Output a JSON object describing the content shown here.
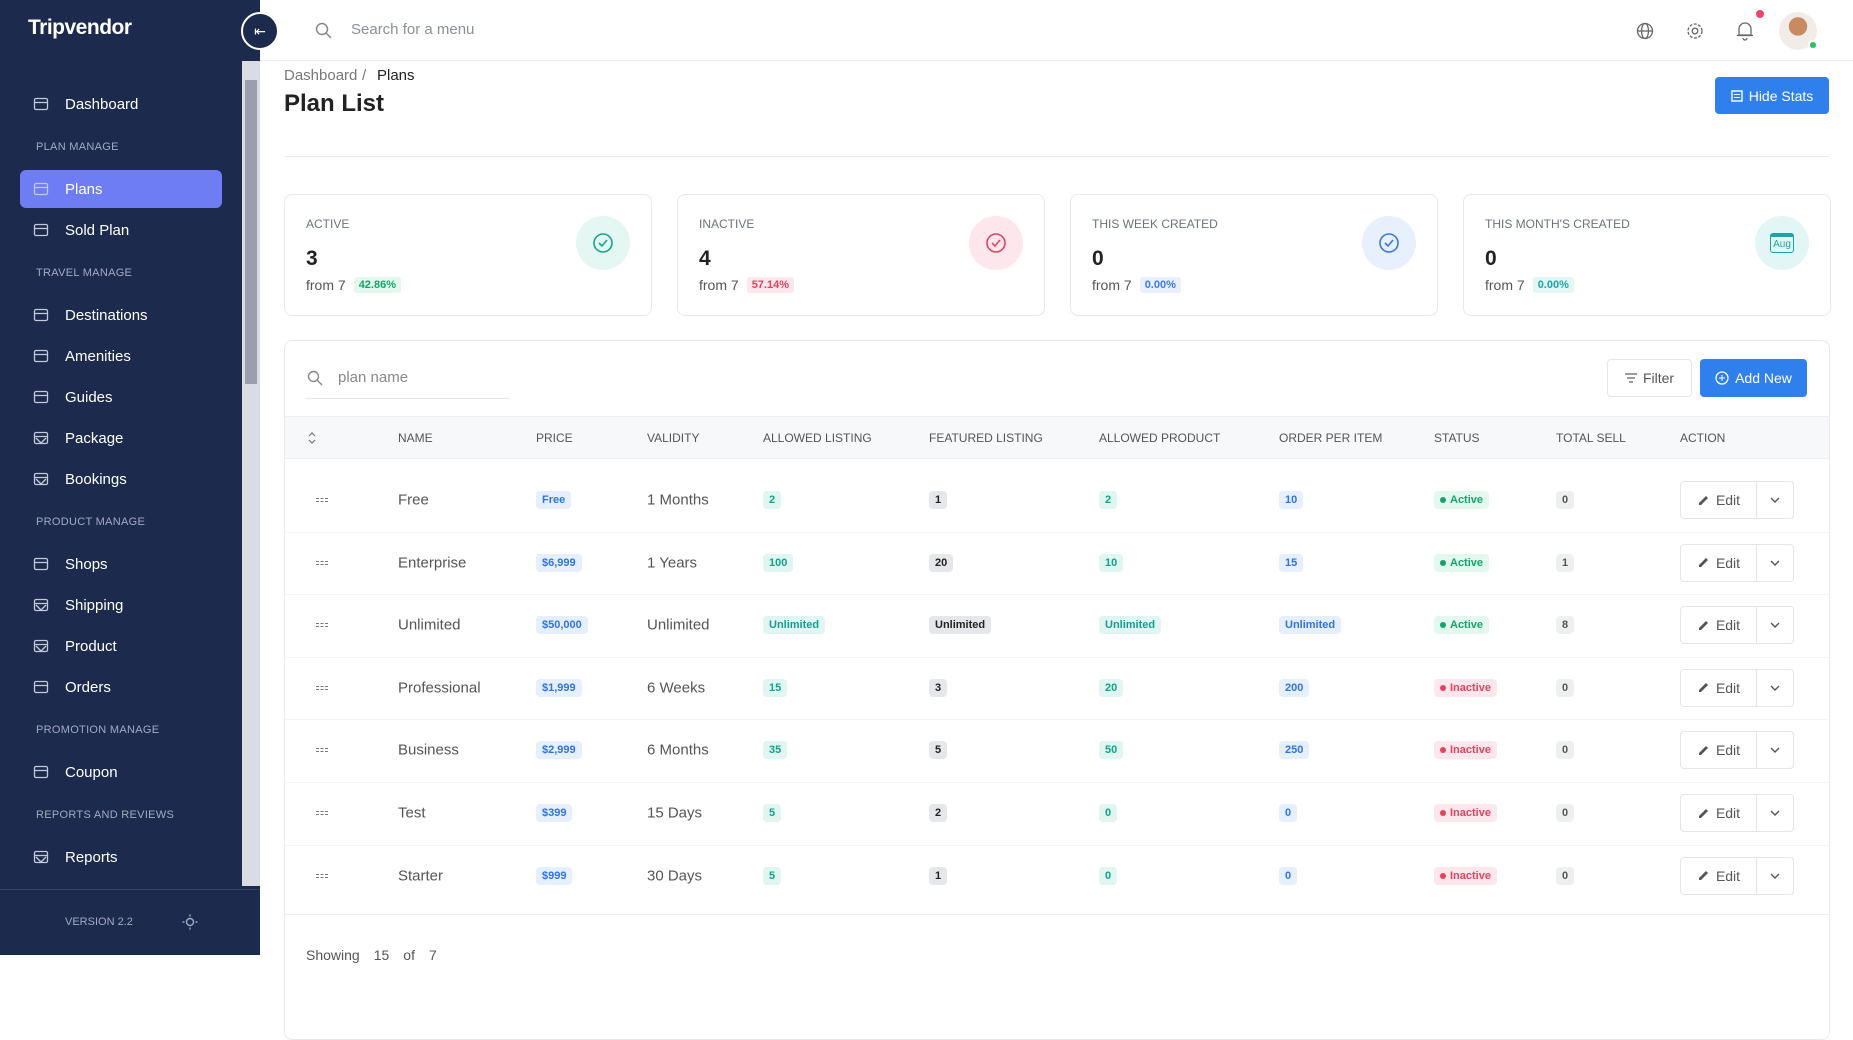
{
  "brand": "Tripvendor",
  "sidebar": {
    "top": {
      "label": "Dashboard"
    },
    "sections": [
      {
        "title": "PLAN MANAGE",
        "items": [
          {
            "label": "Plans",
            "active": true
          },
          {
            "label": "Sold Plan"
          }
        ]
      },
      {
        "title": "TRAVEL MANAGE",
        "items": [
          {
            "label": "Destinations"
          },
          {
            "label": "Amenities"
          },
          {
            "label": "Guides"
          },
          {
            "label": "Package",
            "dropdown": true
          },
          {
            "label": "Bookings",
            "dropdown": true
          }
        ]
      },
      {
        "title": "PRODUCT MANAGE",
        "items": [
          {
            "label": "Shops"
          },
          {
            "label": "Shipping",
            "dropdown": true
          },
          {
            "label": "Product",
            "dropdown": true
          },
          {
            "label": "Orders"
          }
        ]
      },
      {
        "title": "PROMOTION MANAGE",
        "items": [
          {
            "label": "Coupon"
          }
        ]
      },
      {
        "title": "REPORTS AND REVIEWS",
        "items": [
          {
            "label": "Reports",
            "dropdown": true
          }
        ]
      }
    ],
    "version": "VERSION 2.2"
  },
  "topbar": {
    "search_placeholder": "Search for a menu"
  },
  "breadcrumb": [
    "Dashboard",
    "Plans"
  ],
  "page_title": "Plan List",
  "hide_stats": "Hide Stats",
  "stats": [
    {
      "label": "ACTIVE",
      "value": "3",
      "from": "from 7",
      "change": "42.86%",
      "tone": "green"
    },
    {
      "label": "INACTIVE",
      "value": "4",
      "from": "from 7",
      "change": "57.14%",
      "tone": "red"
    },
    {
      "label": "THIS WEEK CREATED",
      "value": "0",
      "from": "from 7",
      "change": "0.00%",
      "tone": "blue"
    },
    {
      "label": "THIS MONTH'S CREATED",
      "value": "0",
      "from": "from 7",
      "change": "0.00%",
      "tone": "teal",
      "icon_text": "Aug"
    }
  ],
  "table": {
    "search_placeholder": "plan name",
    "filter": "Filter",
    "add_new": "Add New",
    "action": "Edit",
    "columns": [
      "NAME",
      "PRICE",
      "VALIDITY",
      "ALLOWED LISTING",
      "FEATURED LISTING",
      "ALLOWED PRODUCT",
      "ORDER PER ITEM",
      "STATUS",
      "TOTAL SELL",
      "ACTION"
    ],
    "rows": [
      {
        "cells": [
          "Free",
          "Free",
          "1 Months",
          "2",
          "1",
          "2",
          "10",
          "Active",
          "0"
        ],
        "status_tone": "active"
      },
      {
        "cells": [
          "Enterprise",
          "$6,999",
          "1 Years",
          "100",
          "20",
          "10",
          "15",
          "Active",
          "1"
        ],
        "status_tone": "active"
      },
      {
        "cells": [
          "Unlimited",
          "$50,000",
          "Unlimited",
          "Unlimited",
          "Unlimited",
          "Unlimited",
          "Unlimited",
          "Active",
          "8"
        ],
        "status_tone": "active"
      },
      {
        "cells": [
          "Professional",
          "$1,999",
          "6 Weeks",
          "15",
          "3",
          "20",
          "200",
          "Inactive",
          "0"
        ],
        "status_tone": "inactive"
      },
      {
        "cells": [
          "Business",
          "$2,999",
          "6 Months",
          "35",
          "5",
          "50",
          "250",
          "Inactive",
          "0"
        ],
        "status_tone": "inactive"
      },
      {
        "cells": [
          "Test",
          "$399",
          "15 Days",
          "5",
          "2",
          "0",
          "0",
          "Inactive",
          "0"
        ],
        "status_tone": "inactive"
      },
      {
        "cells": [
          "Starter",
          "$999",
          "30 Days",
          "5",
          "1",
          "0",
          "0",
          "Inactive",
          "0"
        ],
        "status_tone": "inactive"
      }
    ]
  },
  "footer": {
    "showing": "Showing",
    "per_page": "15",
    "of": "of",
    "total": "7"
  }
}
